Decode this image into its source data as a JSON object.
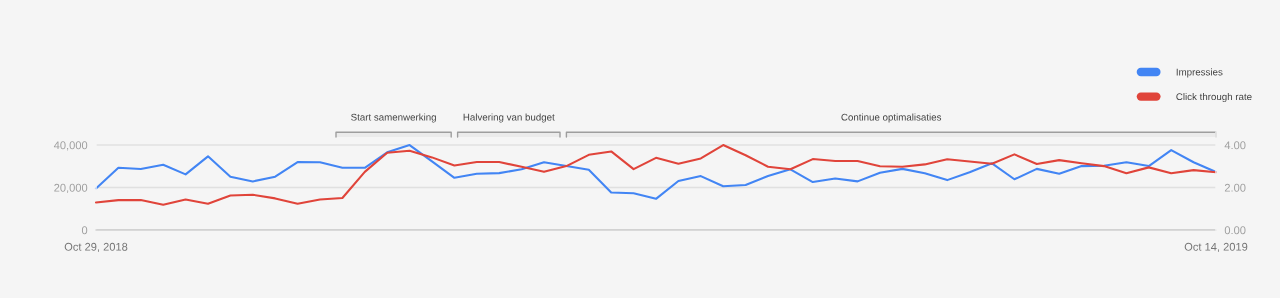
{
  "chart_data": {
    "type": "line",
    "x": [
      "2018-10-29",
      "2018-11-05",
      "2018-11-12",
      "2018-11-19",
      "2018-11-26",
      "2018-12-03",
      "2018-12-10",
      "2018-12-17",
      "2018-12-24",
      "2018-12-31",
      "2019-01-07",
      "2019-01-14",
      "2019-01-21",
      "2019-01-28",
      "2019-02-04",
      "2019-02-11",
      "2019-02-18",
      "2019-02-25",
      "2019-03-04",
      "2019-03-11",
      "2019-03-18",
      "2019-03-25",
      "2019-04-01",
      "2019-04-08",
      "2019-04-15",
      "2019-04-22",
      "2019-04-29",
      "2019-05-06",
      "2019-05-13",
      "2019-05-20",
      "2019-05-27",
      "2019-06-03",
      "2019-06-10",
      "2019-06-17",
      "2019-06-24",
      "2019-07-01",
      "2019-07-08",
      "2019-07-15",
      "2019-07-22",
      "2019-07-29",
      "2019-08-05",
      "2019-08-12",
      "2019-08-19",
      "2019-08-26",
      "2019-09-02",
      "2019-09-09",
      "2019-09-16",
      "2019-09-23",
      "2019-09-30",
      "2019-10-07",
      "2019-10-14"
    ],
    "series": [
      {
        "name": "Impressies",
        "color": "#4285f4",
        "values": [
          19600,
          29300,
          28700,
          30700,
          26200,
          34700,
          25100,
          22900,
          25100,
          32000,
          31900,
          29300,
          29300,
          36600,
          40000,
          32300,
          24600,
          26500,
          26800,
          28600,
          31900,
          30100,
          28400,
          17700,
          17300,
          14700,
          23100,
          25400,
          20600,
          21200,
          25400,
          28600,
          22600,
          24300,
          22900,
          27000,
          28800,
          26700,
          23500,
          27200,
          31400,
          23900,
          28800,
          26500,
          30100,
          30300,
          31900,
          30100,
          37600,
          31900,
          27300
        ]
      },
      {
        "name": "Click through rate",
        "color": "#e0443a",
        "axis": "y2",
        "values": [
          1.3,
          1.41,
          1.41,
          1.19,
          1.44,
          1.24,
          1.63,
          1.66,
          1.49,
          1.24,
          1.44,
          1.51,
          2.74,
          3.64,
          3.73,
          3.42,
          3.04,
          3.2,
          3.2,
          2.98,
          2.74,
          3.01,
          3.54,
          3.7,
          2.87,
          3.4,
          3.12,
          3.37,
          4.0,
          3.52,
          2.98,
          2.86,
          3.34,
          3.25,
          3.25,
          3.0,
          2.98,
          3.09,
          3.33,
          3.23,
          3.12,
          3.56,
          3.11,
          3.29,
          3.14,
          3.01,
          2.67,
          2.95,
          2.67,
          2.82,
          2.72
        ]
      }
    ],
    "xlim": [
      "2018-10-29",
      "2019-10-14"
    ],
    "xticks": [
      {
        "value": "2018-10-29",
        "label": "Oct 29, 2018"
      },
      {
        "value": "2019-10-14",
        "label": "Oct 14, 2019"
      }
    ],
    "ylim": [
      0,
      46000
    ],
    "yticks": [
      0,
      {
        "value": 20000,
        "label": "20,000"
      },
      {
        "value": 40000,
        "label": "40,000"
      }
    ],
    "y2lim": [
      0,
      4.6
    ],
    "y2ticks": [
      {
        "value": 0,
        "label": "0.00"
      },
      {
        "value": 2,
        "label": "2.00"
      },
      {
        "value": 4,
        "label": "4.00"
      }
    ],
    "bands": [
      {
        "axis": "x",
        "from": "2019-01-12",
        "to": "2019-02-17",
        "label": "Start samenwerking"
      },
      {
        "axis": "x",
        "from": "2019-02-19",
        "to": "2019-03-23",
        "label": "Halvering van budget"
      },
      {
        "axis": "x",
        "from": "2019-03-25",
        "to": "2019-10-14",
        "label": "Continue optimalisaties"
      }
    ],
    "grid": "y",
    "legend": "top right",
    "line_style": "solid",
    "marker": "none"
  }
}
